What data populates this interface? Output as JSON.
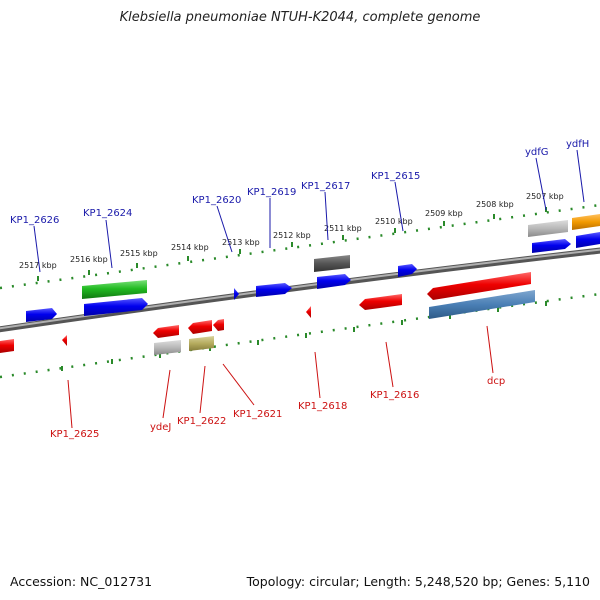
{
  "title": "Klebsiella pneumoniae NTUH-K2044, complete genome",
  "accession": "Accession: NC_012731",
  "summary": "Topology: circular; Length: 5,248,520 bp; Genes: 5,110",
  "colors": {
    "forward_label": "#1a1aaa",
    "reverse_label": "#cc1111",
    "ruler_tick": "#2a8a2a",
    "backbone": "#808080"
  },
  "ticks": [
    {
      "label": "2517 kbp"
    },
    {
      "label": "2516 kbp"
    },
    {
      "label": "2515 kbp"
    },
    {
      "label": "2514 kbp"
    },
    {
      "label": "2513 kbp"
    },
    {
      "label": "2512 kbp"
    },
    {
      "label": "2511 kbp"
    },
    {
      "label": "2510 kbp"
    },
    {
      "label": "2509 kbp"
    },
    {
      "label": "2508 kbp"
    },
    {
      "label": "2507 kbp"
    }
  ],
  "forward_labels": [
    {
      "text": "KP1_2626"
    },
    {
      "text": "KP1_2624"
    },
    {
      "text": "KP1_2620"
    },
    {
      "text": "KP1_2619"
    },
    {
      "text": "KP1_2617"
    },
    {
      "text": "KP1_2615"
    },
    {
      "text": "ydfG"
    },
    {
      "text": "ydfH"
    }
  ],
  "reverse_labels": [
    {
      "text": "KP1_2625"
    },
    {
      "text": "ydeJ"
    },
    {
      "text": "KP1_2622"
    },
    {
      "text": "KP1_2621"
    },
    {
      "text": "KP1_2618"
    },
    {
      "text": "KP1_2616"
    },
    {
      "text": "dcp"
    }
  ]
}
